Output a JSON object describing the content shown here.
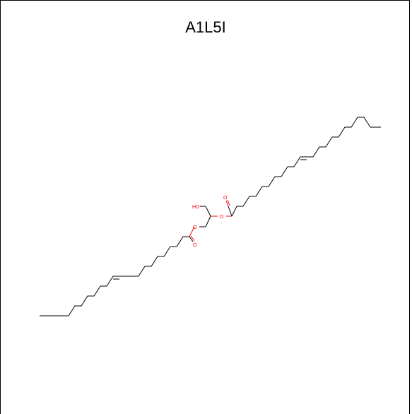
{
  "title": "A1L5I",
  "atoms": {
    "hydroxyl": "HO",
    "ester_oxygen_upper": "O",
    "carbonyl_oxygen_upper": "O",
    "ester_oxygen_lower": "O",
    "carbonyl_oxygen_lower": "O"
  },
  "colors": {
    "bond": "#000000",
    "heteroatom": "#ff0000",
    "frame": "#000000"
  }
}
